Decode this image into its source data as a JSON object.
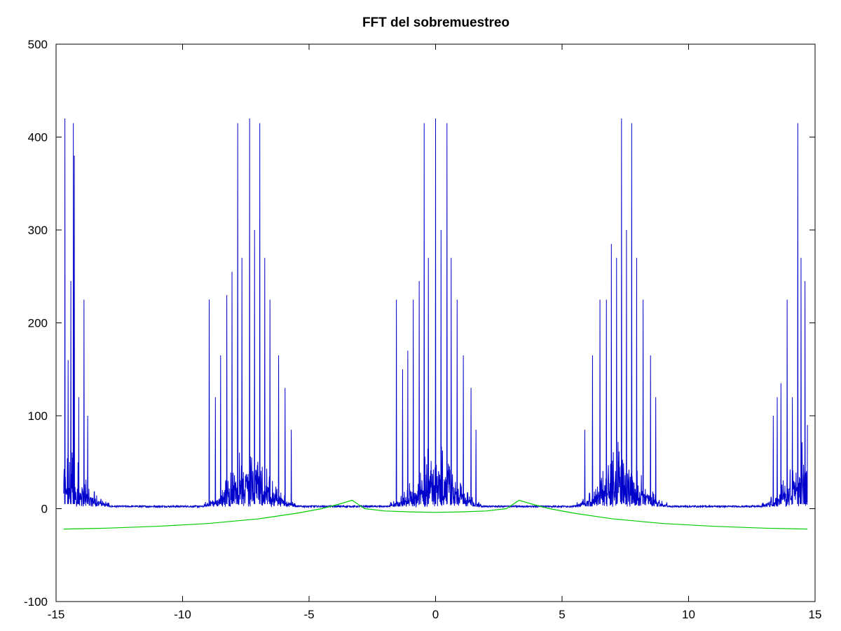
{
  "chart_data": {
    "type": "line",
    "title": "FFT del sobremuestreo",
    "xlabel": "",
    "ylabel": "",
    "xlim": [
      -15,
      15
    ],
    "ylim": [
      -100,
      500
    ],
    "x_ticks": [
      -15,
      -10,
      -5,
      0,
      5,
      10,
      15
    ],
    "y_ticks": [
      -100,
      0,
      100,
      200,
      300,
      400,
      500
    ],
    "grid": false,
    "series": [
      {
        "color": "#0000cc",
        "x_range": [
          -14.7,
          14.7
        ],
        "clusters": [
          {
            "center": -14.7,
            "halfwidth": 1.8
          },
          {
            "center": -7.35,
            "halfwidth": 1.8
          },
          {
            "center": 0,
            "halfwidth": 1.8
          },
          {
            "center": 7.35,
            "halfwidth": 1.8
          },
          {
            "center": 14.7,
            "halfwidth": 1.8
          }
        ],
        "peaks": [
          {
            "x": -14.65,
            "y": 420
          },
          {
            "x": -14.52,
            "y": 160
          },
          {
            "x": -14.42,
            "y": 245
          },
          {
            "x": -14.32,
            "y": 415
          },
          {
            "x": -14.28,
            "y": 380
          },
          {
            "x": -14.1,
            "y": 120
          },
          {
            "x": -13.9,
            "y": 225
          },
          {
            "x": -13.75,
            "y": 100
          },
          {
            "x": -8.95,
            "y": 225
          },
          {
            "x": -8.7,
            "y": 120
          },
          {
            "x": -8.5,
            "y": 165
          },
          {
            "x": -8.25,
            "y": 230
          },
          {
            "x": -8.05,
            "y": 255
          },
          {
            "x": -7.82,
            "y": 415
          },
          {
            "x": -7.65,
            "y": 270
          },
          {
            "x": -7.35,
            "y": 420
          },
          {
            "x": -7.15,
            "y": 300
          },
          {
            "x": -6.95,
            "y": 415
          },
          {
            "x": -6.75,
            "y": 270
          },
          {
            "x": -6.55,
            "y": 225
          },
          {
            "x": -6.2,
            "y": 165
          },
          {
            "x": -5.95,
            "y": 130
          },
          {
            "x": -5.7,
            "y": 85
          },
          {
            "x": -1.55,
            "y": 225
          },
          {
            "x": -1.3,
            "y": 150
          },
          {
            "x": -1.1,
            "y": 170
          },
          {
            "x": -0.88,
            "y": 225
          },
          {
            "x": -0.65,
            "y": 245
          },
          {
            "x": -0.45,
            "y": 415
          },
          {
            "x": -0.28,
            "y": 270
          },
          {
            "x": 0.0,
            "y": 420
          },
          {
            "x": 0.22,
            "y": 300
          },
          {
            "x": 0.45,
            "y": 415
          },
          {
            "x": 0.62,
            "y": 270
          },
          {
            "x": 0.85,
            "y": 225
          },
          {
            "x": 1.1,
            "y": 165
          },
          {
            "x": 1.4,
            "y": 130
          },
          {
            "x": 1.6,
            "y": 85
          },
          {
            "x": 5.9,
            "y": 85
          },
          {
            "x": 6.2,
            "y": 165
          },
          {
            "x": 6.5,
            "y": 225
          },
          {
            "x": 6.75,
            "y": 225
          },
          {
            "x": 6.95,
            "y": 285
          },
          {
            "x": 7.15,
            "y": 270
          },
          {
            "x": 7.35,
            "y": 420
          },
          {
            "x": 7.55,
            "y": 300
          },
          {
            "x": 7.75,
            "y": 415
          },
          {
            "x": 7.95,
            "y": 270
          },
          {
            "x": 8.2,
            "y": 225
          },
          {
            "x": 8.5,
            "y": 165
          },
          {
            "x": 8.7,
            "y": 120
          },
          {
            "x": 13.35,
            "y": 100
          },
          {
            "x": 13.5,
            "y": 120
          },
          {
            "x": 13.65,
            "y": 135
          },
          {
            "x": 13.9,
            "y": 225
          },
          {
            "x": 14.1,
            "y": 120
          },
          {
            "x": 14.32,
            "y": 415
          },
          {
            "x": 14.45,
            "y": 270
          },
          {
            "x": 14.6,
            "y": 245
          },
          {
            "x": 14.7,
            "y": 90
          }
        ]
      },
      {
        "color": "#00cc00",
        "points": [
          [
            -14.7,
            -22
          ],
          [
            -13,
            -21
          ],
          [
            -11,
            -19
          ],
          [
            -9,
            -16
          ],
          [
            -7,
            -11
          ],
          [
            -5.5,
            -5
          ],
          [
            -4.5,
            0
          ],
          [
            -3.8,
            5
          ],
          [
            -3.3,
            9
          ],
          [
            -2.8,
            0
          ],
          [
            -2.0,
            -2.5
          ],
          [
            -1.0,
            -3.5
          ],
          [
            0,
            -4
          ],
          [
            1.0,
            -3.5
          ],
          [
            2.0,
            -2.5
          ],
          [
            2.8,
            0
          ],
          [
            3.3,
            9
          ],
          [
            3.8,
            5
          ],
          [
            4.5,
            0
          ],
          [
            5.5,
            -5
          ],
          [
            7,
            -11
          ],
          [
            9,
            -16
          ],
          [
            11,
            -19
          ],
          [
            13,
            -21
          ],
          [
            14.7,
            -22
          ]
        ]
      }
    ]
  }
}
